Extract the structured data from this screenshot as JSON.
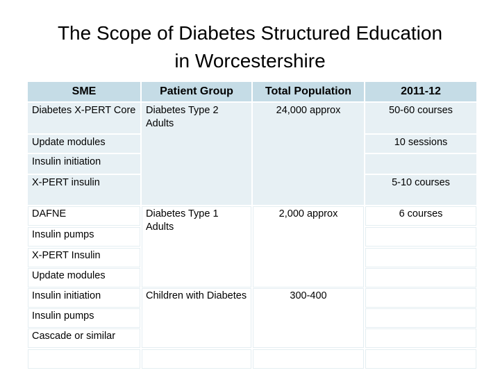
{
  "title_line1": "The Scope of Diabetes Structured Education",
  "title_line2": "in Worcestershire",
  "headers": [
    "SME",
    "Patient Group",
    "Total Population",
    "2011-12"
  ],
  "sme": [
    "Diabetes X-PERT Core",
    "Update modules",
    "Insulin initiation",
    "X-PERT insulin",
    "DAFNE",
    "Insulin pumps",
    "X-PERT Insulin",
    "Update modules",
    "Insulin initiation",
    "Insulin pumps",
    "Cascade or similar"
  ],
  "patient_groups": [
    "Diabetes Type 2 Adults",
    "Diabetes Type 1 Adults",
    "Children with Diabetes"
  ],
  "populations": [
    "24,000 approx",
    "2,000 approx",
    "300-400"
  ],
  "year_values": [
    "50-60 courses",
    "10 sessions",
    "5-10 courses",
    "6 courses"
  ]
}
